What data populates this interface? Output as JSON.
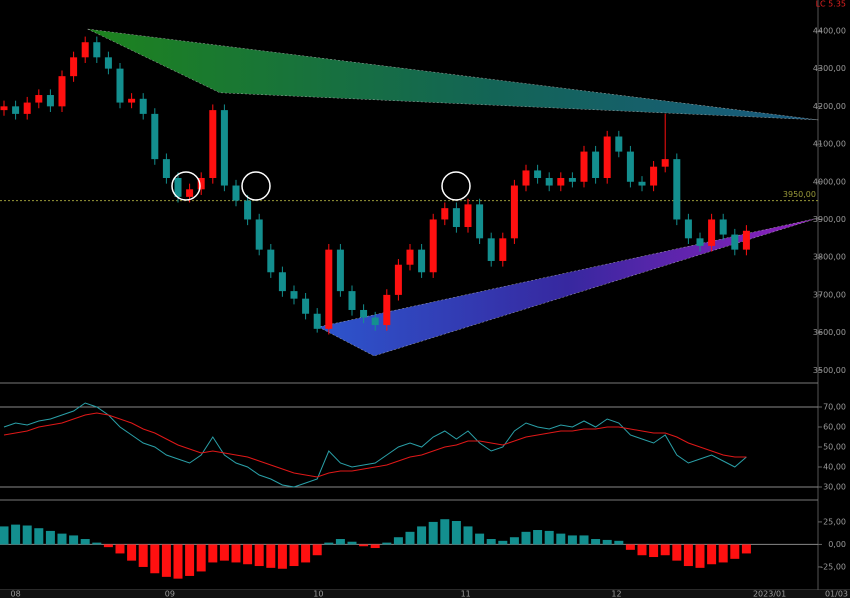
{
  "chart_data": [
    {
      "type": "candlestick",
      "title": "LC 5.35",
      "open": [
        4190,
        4200,
        4180,
        4210,
        4230,
        4200,
        4280,
        4330,
        4370,
        4330,
        4300,
        4210,
        4220,
        4180,
        4060,
        4010,
        3960,
        3980,
        4010,
        4190,
        3990,
        3950,
        3900,
        3820,
        3760,
        3710,
        3690,
        3650,
        3610,
        3820,
        3710,
        3660,
        3640,
        3620,
        3700,
        3780,
        3820,
        3760,
        3900,
        3930,
        3880,
        3940,
        3850,
        3790,
        3850,
        3990,
        4030,
        4010,
        3990,
        4010,
        4000,
        4080,
        4010,
        4120,
        4080,
        4000,
        3990,
        4040,
        4060,
        3900,
        3850,
        3830,
        3900,
        3860,
        3820
      ],
      "high": [
        4215,
        4215,
        4225,
        4245,
        4245,
        4295,
        4345,
        4385,
        4385,
        4345,
        4315,
        4235,
        4235,
        4195,
        4075,
        4025,
        3995,
        4025,
        4205,
        4205,
        4005,
        3965,
        3915,
        3835,
        3775,
        3725,
        3705,
        3665,
        3835,
        3835,
        3725,
        3675,
        3655,
        3715,
        3795,
        3835,
        3835,
        3915,
        3945,
        3945,
        3955,
        3955,
        3865,
        3865,
        4005,
        4045,
        4045,
        4025,
        4025,
        4025,
        4095,
        4095,
        4135,
        4135,
        4095,
        4015,
        4055,
        4180,
        4075,
        3915,
        3865,
        3915,
        3915,
        3875,
        3885
      ],
      "low": [
        4175,
        4165,
        4165,
        4195,
        4185,
        4185,
        4265,
        4315,
        4315,
        4285,
        4195,
        4195,
        4165,
        4045,
        3995,
        3945,
        3945,
        3965,
        3995,
        3975,
        3935,
        3885,
        3805,
        3745,
        3695,
        3675,
        3635,
        3600,
        3595,
        3695,
        3645,
        3625,
        3605,
        3605,
        3685,
        3765,
        3745,
        3745,
        3885,
        3865,
        3865,
        3835,
        3775,
        3775,
        3835,
        3975,
        3995,
        3975,
        3975,
        3985,
        3985,
        3995,
        3995,
        4065,
        3985,
        3975,
        3975,
        4025,
        3885,
        3835,
        3815,
        3815,
        3845,
        3805,
        3805
      ],
      "close": [
        4200,
        4180,
        4210,
        4230,
        4200,
        4280,
        4330,
        4370,
        4330,
        4300,
        4210,
        4220,
        4180,
        4060,
        4010,
        3960,
        3980,
        4010,
        4190,
        3990,
        3950,
        3900,
        3820,
        3760,
        3710,
        3690,
        3650,
        3610,
        3820,
        3710,
        3660,
        3640,
        3620,
        3700,
        3780,
        3820,
        3760,
        3900,
        3930,
        3880,
        3940,
        3850,
        3790,
        3850,
        3990,
        4030,
        4010,
        3990,
        4010,
        4000,
        4080,
        4010,
        4120,
        4080,
        4000,
        3990,
        4040,
        4060,
        3900,
        3850,
        3830,
        3900,
        3860,
        3820,
        3870
      ],
      "up_color": "#ff1010",
      "down_color": "#138f8f",
      "ylim": [
        3469,
        4482
      ],
      "yticks": [
        {
          "value": 3500,
          "label": "3500,00"
        },
        {
          "value": 3600,
          "label": "3600,00"
        },
        {
          "value": 3700,
          "label": "3700,00"
        },
        {
          "value": 3800,
          "label": "3800,00"
        },
        {
          "value": 3900,
          "label": "3900,00"
        },
        {
          "value": 4000,
          "label": "4000,00"
        },
        {
          "value": 4100,
          "label": "4100,00"
        },
        {
          "value": 4200,
          "label": "4200,00"
        },
        {
          "value": 4300,
          "label": "4300,00"
        },
        {
          "value": 4400,
          "label": "4400,00"
        }
      ],
      "xticks": [
        {
          "value": 1,
          "label": "08"
        },
        {
          "value": 14.3,
          "label": "09"
        },
        {
          "value": 27.1,
          "label": "10"
        },
        {
          "value": 39.8,
          "label": "11"
        },
        {
          "value": 52.8,
          "label": "12"
        },
        {
          "value": 66,
          "label": "2023/01"
        }
      ],
      "cursor_date": "01/03",
      "hline": {
        "value": 3950,
        "label": "3950,00",
        "color": "#9a9a3a"
      },
      "drawings": [
        {
          "points": [
            [
              7.2,
              4405
            ],
            [
              18.6,
              4236
            ],
            [
              70.2,
              4164
            ]
          ],
          "fill": "gradUp"
        },
        {
          "points": [
            [
              27.1,
              3615
            ],
            [
              31.9,
              3538
            ],
            [
              70.2,
              3904
            ]
          ],
          "fill": "gradDown"
        }
      ]
    },
    {
      "type": "line",
      "series": [
        {
          "color": "#2aa0a8",
          "values": [
            60,
            62,
            61,
            63,
            64,
            66,
            68,
            72,
            70,
            66,
            60,
            56,
            52,
            50,
            46,
            44,
            42,
            46,
            55,
            46,
            42,
            40,
            36,
            34,
            31,
            30,
            32,
            34,
            48,
            42,
            40,
            41,
            42,
            46,
            50,
            52,
            50,
            55,
            58,
            54,
            58,
            52,
            48,
            50,
            58,
            62,
            60,
            59,
            61,
            60,
            63,
            60,
            64,
            62,
            56,
            54,
            52,
            56,
            46,
            42,
            44,
            46,
            43,
            40,
            45
          ]
        },
        {
          "color": "#e01818",
          "values": [
            56,
            57,
            58,
            60,
            61,
            62,
            64,
            66,
            67,
            66,
            64,
            62,
            59,
            57,
            54,
            51,
            49,
            47,
            48,
            47,
            46,
            45,
            43,
            41,
            39,
            37,
            36,
            35,
            37,
            38,
            38,
            39,
            40,
            41,
            43,
            45,
            46,
            48,
            50,
            51,
            53,
            53,
            52,
            51,
            53,
            55,
            56,
            57,
            58,
            58,
            59,
            59,
            60,
            60,
            59,
            58,
            57,
            57,
            55,
            52,
            50,
            48,
            46,
            45,
            45
          ]
        }
      ],
      "ylim": [
        23.5,
        81
      ],
      "yticks": [
        {
          "value": 30,
          "label": "30,00"
        },
        {
          "value": 40,
          "label": "40,00"
        },
        {
          "value": 50,
          "label": "50,00"
        },
        {
          "value": 60,
          "label": "60,00"
        },
        {
          "value": 70,
          "label": "70,00"
        }
      ],
      "guides": [
        30,
        70
      ]
    },
    {
      "type": "bar",
      "values": [
        20,
        22,
        21,
        18,
        15,
        12,
        10,
        6,
        2,
        -3,
        -10,
        -18,
        -25,
        -32,
        -36,
        -38,
        -35,
        -30,
        -20,
        -18,
        -20,
        -22,
        -24,
        -26,
        -27,
        -24,
        -20,
        -12,
        2,
        6,
        3,
        -2,
        -4,
        2,
        8,
        14,
        20,
        25,
        28,
        26,
        20,
        12,
        6,
        4,
        8,
        14,
        16,
        15,
        12,
        10,
        10,
        6,
        5,
        4,
        -6,
        -12,
        -14,
        -12,
        -18,
        -24,
        -26,
        -22,
        -20,
        -16,
        -10
      ],
      "pos_color": "#138f8f",
      "neg_color": "#ff1010",
      "ylim": [
        -50.6,
        46
      ],
      "yticks": [
        {
          "value": -25,
          "label": "-25,00"
        },
        {
          "value": 0,
          "label": "0,00"
        },
        {
          "value": 25,
          "label": "25,00"
        }
      ]
    }
  ]
}
